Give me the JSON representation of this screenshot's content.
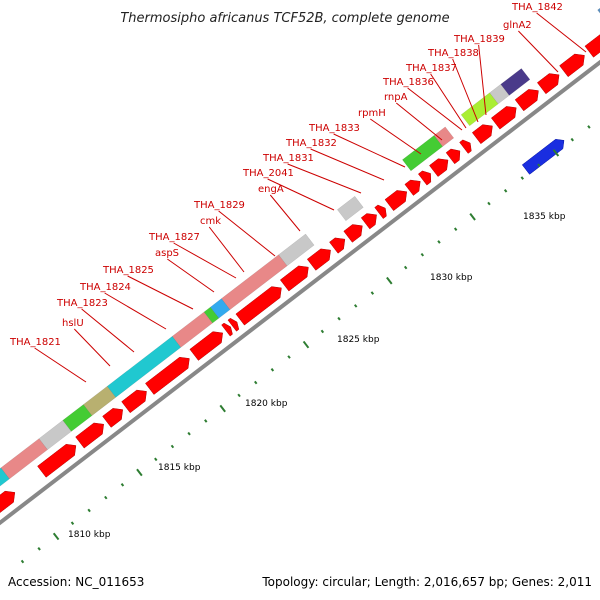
{
  "title": "Thermosipho africanus TCF52B, complete genome",
  "footer": {
    "accession": "Accession: NC_011653",
    "topology": "Topology: circular; Length: 2,016,657 bp; Genes: 2,011"
  },
  "ruler": [
    "1810 kbp",
    "1815 kbp",
    "1820 kbp",
    "1825 kbp",
    "1830 kbp",
    "1835 kbp"
  ],
  "gene_labels": [
    "THA_1821",
    "hslU",
    "THA_1823",
    "THA_1824",
    "THA_1825",
    "aspS",
    "THA_1827",
    "cmk",
    "THA_1829",
    "engA",
    "THA_2041",
    "THA_1831",
    "THA_1832",
    "THA_1833",
    "rpmH",
    "rnpA",
    "THA_1836",
    "THA_1837",
    "THA_1838",
    "THA_1839",
    "glnA2",
    "THA_1842"
  ],
  "colors": {
    "cds": "#ff0000",
    "label": "#cc0000",
    "backbone": "#888888",
    "tick": "#2e7d32",
    "cog_cyan": "#20c8d0",
    "cog_pink": "#e88888",
    "cog_green": "#44cc33",
    "cog_olive": "#b8b070",
    "cog_grey": "#c8c8c8",
    "cog_blue": "#33aaee",
    "cog_lime": "#aaee33",
    "cog_steel": "#5a8fbf",
    "cog_navy": "#4a3a8a",
    "rna": "#1a2ee0"
  }
}
